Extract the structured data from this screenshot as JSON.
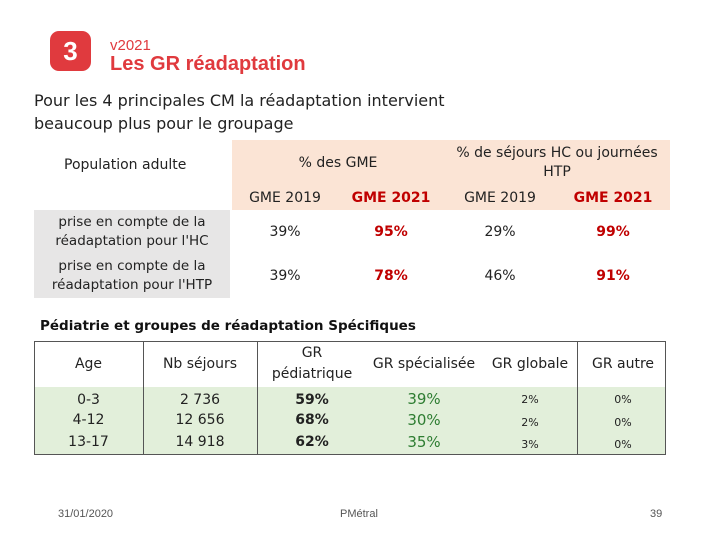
{
  "header": {
    "section_number": "3",
    "version": "v2021",
    "title": "Les GR réadaptation"
  },
  "intro": "Pour les 4 principales CM la réadaptation intervient beaucoup plus pour le groupage",
  "adult_table": {
    "population_label": "Population adulte",
    "group1_header": "% des GME",
    "group2_header": "% de séjours HC ou journées HTP",
    "sub_headers": [
      "GME 2019",
      "GME 2021",
      "GME 2019",
      "GME 2021"
    ],
    "rows": [
      {
        "label": "prise en compte de la réadaptation pour l'HC",
        "values": [
          "39%",
          "95%",
          "29%",
          "99%"
        ]
      },
      {
        "label": "prise en compte de la réadaptation pour l'HTP",
        "values": [
          "39%",
          "78%",
          "46%",
          "91%"
        ]
      }
    ]
  },
  "pediatric_table": {
    "title": "Pédiatrie et groupes de réadaptation Spécifiques",
    "headers": [
      "Age",
      "Nb séjours",
      "GR pédiatrique",
      "GR spécialisée",
      "GR globale",
      "GR autre"
    ],
    "rows": [
      {
        "age": "0-3",
        "nb": "2 736",
        "gr_ped": "59%",
        "gr_spec": "39%",
        "gr_glob": "2%",
        "gr_autre": "0%"
      },
      {
        "age": "4-12",
        "nb": "12 656",
        "gr_ped": "68%",
        "gr_spec": "30%",
        "gr_glob": "2%",
        "gr_autre": "0%"
      },
      {
        "age": "13-17",
        "nb": "14 918",
        "gr_ped": "62%",
        "gr_spec": "35%",
        "gr_glob": "3%",
        "gr_autre": "0%"
      }
    ]
  },
  "footer": {
    "date": "31/01/2020",
    "center": "PMétral",
    "page": "39"
  },
  "colors": {
    "accent_red": "#e03a3e",
    "highlight_red": "#c00000",
    "orange_fill": "#fbe4d5",
    "grey_fill": "#e7e6e6",
    "green_fill": "#e2efda"
  }
}
